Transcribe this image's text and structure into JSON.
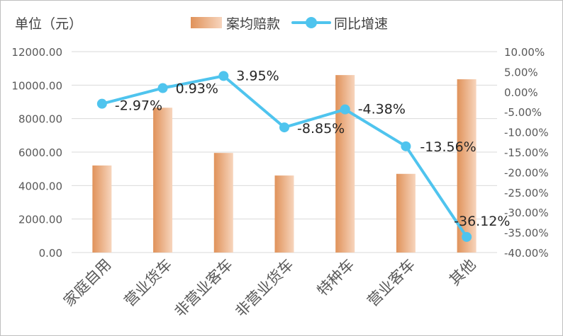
{
  "colors": {
    "bar_dark": "#e0925a",
    "bar_light": "#f7d5bd",
    "line": "#4fc4ee",
    "grid": "#d9d9d9",
    "axis_text": "#595959",
    "label_text": "#262626"
  },
  "chart_data": {
    "type": "bar+line",
    "ylabel": "单位（元）",
    "categories": [
      "家庭自用",
      "营业货车",
      "非营业客车",
      "非营业货车",
      "特种车",
      "营业客车",
      "其他"
    ],
    "series": [
      {
        "name": "案均赔款",
        "type": "bar",
        "axis": "left",
        "values": [
          5200,
          8650,
          5950,
          4600,
          10600,
          4700,
          10350
        ]
      },
      {
        "name": "同比增速",
        "type": "line",
        "axis": "right",
        "values": [
          -2.97,
          0.93,
          3.95,
          -8.85,
          -4.38,
          -13.56,
          -36.12
        ],
        "labels": [
          "-2.97%",
          "0.93%",
          "3.95%",
          "-8.85%",
          "-4.38%",
          "-13.56%",
          "-36.12%"
        ]
      }
    ],
    "left_axis": {
      "min": 0,
      "max": 12000,
      "step": 2000,
      "ticks": [
        "0.00",
        "2000.00",
        "4000.00",
        "6000.00",
        "8000.00",
        "10000.00",
        "12000.00"
      ]
    },
    "right_axis": {
      "min": -40,
      "max": 10,
      "step": 5,
      "ticks": [
        "-40.00%",
        "-35.00%",
        "-30.00%",
        "-25.00%",
        "-20.00%",
        "-15.00%",
        "-10.00%",
        "-5.00%",
        "0.00%",
        "5.00%",
        "10.00%"
      ]
    },
    "grid": true,
    "legend_position": "top"
  }
}
